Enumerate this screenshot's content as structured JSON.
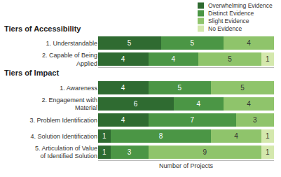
{
  "chart_data": [
    {
      "type": "bar",
      "title": "Tiers of Accessibility",
      "orientation": "horizontal",
      "stacked": true,
      "data_labels": true,
      "tick_labels": "y",
      "legend": "top right",
      "xlim": [
        0,
        14
      ],
      "categories": [
        "1. Understandable",
        "2. Capable of Being Applied"
      ],
      "series": [
        {
          "name": "Overwhelming Evidence",
          "color": "#2f6b31",
          "values": [
            5,
            4
          ]
        },
        {
          "name": "Distinct Evidence",
          "color": "#4b9645",
          "values": [
            5,
            4
          ]
        },
        {
          "name": "Slight Evidence",
          "color": "#8fc46b",
          "values": [
            4,
            5
          ]
        },
        {
          "name": "No Evidence",
          "color": "#d4e8ad",
          "values": [
            0,
            1
          ]
        }
      ]
    },
    {
      "type": "bar",
      "title": "Tiers of Impact",
      "orientation": "horizontal",
      "stacked": true,
      "data_labels": true,
      "tick_labels": "y",
      "xlim": [
        0,
        14
      ],
      "x_label": "Number of Projects",
      "categories": [
        "1. Awareness",
        "2. Engagement with Material",
        "3. Problem Identification",
        "4. Solution Identification",
        "5. Articulation of Value of Identified Solution"
      ],
      "series": [
        {
          "name": "Overwhelming Evidence",
          "color": "#2f6b31",
          "values": [
            4,
            6,
            4,
            1,
            1
          ]
        },
        {
          "name": "Distinct Evidence",
          "color": "#4b9645",
          "values": [
            5,
            4,
            7,
            8,
            3
          ]
        },
        {
          "name": "Slight Evidence",
          "color": "#8fc46b",
          "values": [
            5,
            4,
            3,
            4,
            9
          ]
        },
        {
          "name": "No Evidence",
          "color": "#d4e8ad",
          "values": [
            0,
            0,
            0,
            1,
            1
          ]
        }
      ]
    }
  ]
}
